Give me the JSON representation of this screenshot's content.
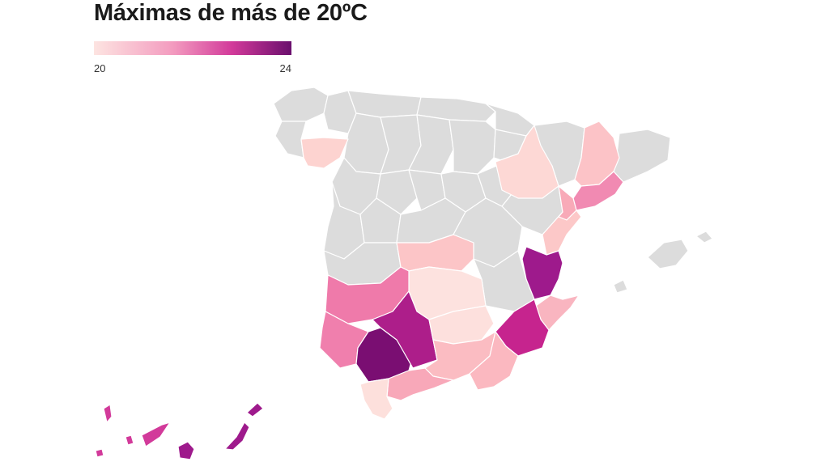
{
  "title": "Máximas de más de 20ºC",
  "legend": {
    "min_label": "20",
    "max_label": "24",
    "min_value": 20,
    "max_value": 24,
    "color_low": "#fde4e1",
    "color_high": "#6a0f6d",
    "no_data_color": "#dcdcdc"
  },
  "regions": [
    {
      "name": "Ourense",
      "value": 20.3
    },
    {
      "name": "Zaragoza",
      "value": 20.4
    },
    {
      "name": "Lleida",
      "value": 20.6
    },
    {
      "name": "Barcelona",
      "value": 21.6
    },
    {
      "name": "Tarragona",
      "value": 21.2
    },
    {
      "name": "Castellón",
      "value": 20.6
    },
    {
      "name": "Valencia",
      "value": 23.7
    },
    {
      "name": "Alicante",
      "value": 21.0
    },
    {
      "name": "Murcia",
      "value": 22.8
    },
    {
      "name": "Toledo",
      "value": 20.6
    },
    {
      "name": "Ciudad Real",
      "value": 20.2
    },
    {
      "name": "Badajoz",
      "value": 21.8
    },
    {
      "name": "Huelva",
      "value": 21.9
    },
    {
      "name": "Sevilla",
      "value": 23.9
    },
    {
      "name": "Córdoba",
      "value": 23.1
    },
    {
      "name": "Jaén",
      "value": 20.1
    },
    {
      "name": "Granada",
      "value": 20.9
    },
    {
      "name": "Almería",
      "value": 20.8
    },
    {
      "name": "Málaga",
      "value": 21.0
    },
    {
      "name": "Cádiz",
      "value": 20.2
    },
    {
      "name": "Santa Cruz de Tenerife",
      "value": 22.0
    },
    {
      "name": "Las Palmas",
      "value": 23.0
    }
  ]
}
